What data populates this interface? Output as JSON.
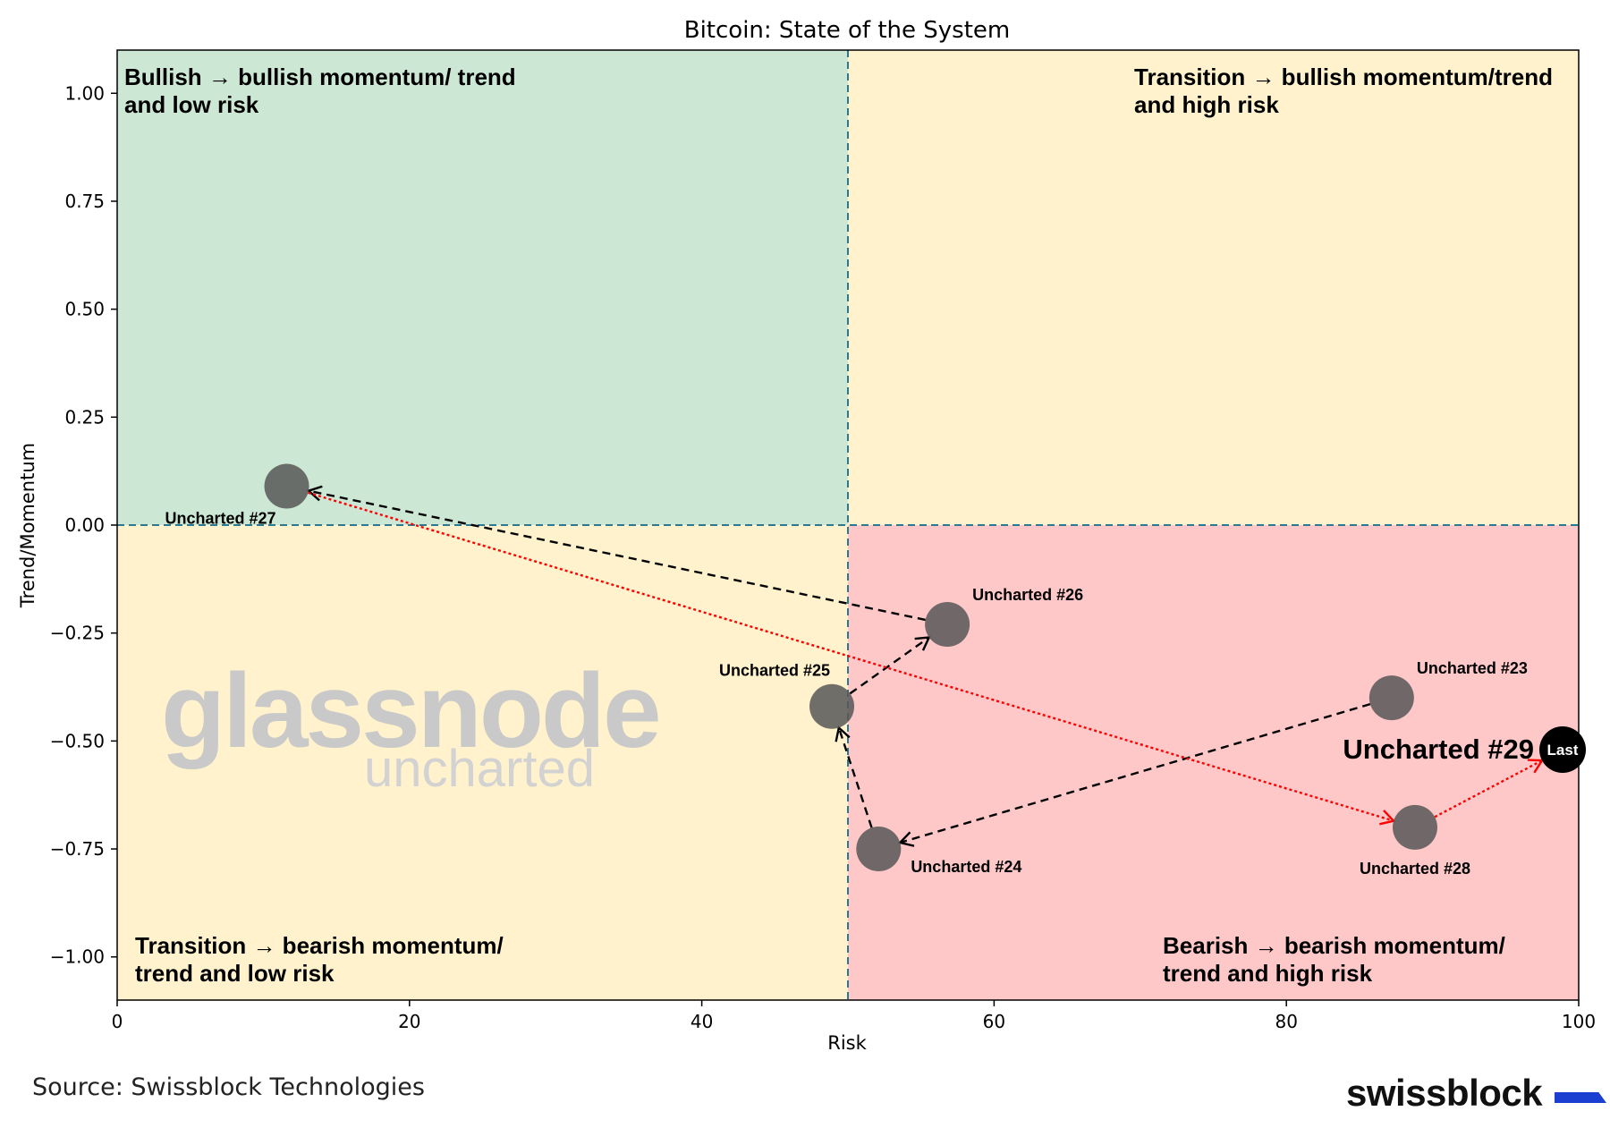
{
  "chart_data": {
    "type": "scatter",
    "title": "Bitcoin: State of the System",
    "xlabel": "Risk",
    "ylabel": "Trend/Momentum",
    "xlim": [
      0,
      100
    ],
    "ylim": [
      -1.1,
      1.1
    ],
    "x_ticks": [
      0,
      20,
      40,
      60,
      80,
      100
    ],
    "x_tick_labels": [
      "0",
      "20",
      "40",
      "60",
      "80",
      "100"
    ],
    "y_ticks": [
      1.0,
      0.75,
      0.5,
      0.25,
      0.0,
      -0.25,
      -0.5,
      -0.75,
      -1.0
    ],
    "y_tick_labels": [
      "1.00",
      "0.75",
      "0.50",
      "0.25",
      "0.00",
      "−0.25",
      "−0.50",
      "−0.75",
      "−1.00"
    ],
    "divider_x": 50,
    "divider_y": 0,
    "quadrants": [
      {
        "name": "top-left",
        "label_lines": [
          "Bullish → bullish momentum/ trend",
          "and low risk"
        ],
        "color": "#cce8d4"
      },
      {
        "name": "top-right",
        "label_lines": [
          "Transition → bullish momentum/trend",
          "and high risk"
        ],
        "color": "#fff2cc"
      },
      {
        "name": "bottom-left",
        "label_lines": [
          "Transition → bearish momentum/",
          "trend and low risk"
        ],
        "color": "#fff2cc"
      },
      {
        "name": "bottom-right",
        "label_lines": [
          "Bearish → bearish momentum/",
          "trend and high risk"
        ],
        "color": "#fec8c8"
      }
    ],
    "points": [
      {
        "label": "Uncharted #23",
        "x": 87.2,
        "y": -0.4,
        "label_pos": "above-right"
      },
      {
        "label": "Uncharted #24",
        "x": 52.1,
        "y": -0.75,
        "label_pos": "below-right"
      },
      {
        "label": "Uncharted #25",
        "x": 48.9,
        "y": -0.42,
        "label_pos": "above-left"
      },
      {
        "label": "Uncharted #26",
        "x": 56.8,
        "y": -0.23,
        "label_pos": "above-right"
      },
      {
        "label": "Uncharted #27",
        "x": 11.6,
        "y": 0.09,
        "label_pos": "below-left"
      },
      {
        "label": "Uncharted #28",
        "x": 88.8,
        "y": -0.7,
        "label_pos": "below"
      },
      {
        "label": "Uncharted #29",
        "x": 98.9,
        "y": -0.52,
        "label_pos": "left-big",
        "marker_text": "Last"
      }
    ],
    "path_black": [
      {
        "from": 87.2,
        "from_y": -0.4,
        "to": 52.1,
        "to_y": -0.75
      },
      {
        "from": 52.1,
        "from_y": -0.75,
        "to": 48.9,
        "to_y": -0.42
      },
      {
        "from": 48.9,
        "from_y": -0.42,
        "to": 56.8,
        "to_y": -0.23
      },
      {
        "from": 56.8,
        "from_y": -0.23,
        "to": 11.6,
        "to_y": 0.09
      }
    ],
    "path_red": [
      {
        "from": 11.6,
        "from_y": 0.09,
        "to": 88.8,
        "to_y": -0.7
      },
      {
        "from": 88.8,
        "from_y": -0.7,
        "to": 98.9,
        "to_y": -0.52
      }
    ],
    "colors": {
      "point": "#575757",
      "last_point": "#000000",
      "divider": "#2a7891",
      "black_arrow": "#000000",
      "red_arrow": "#ff0000"
    },
    "grid": false
  },
  "watermark": {
    "main": "glassnode",
    "sub": "uncharted"
  },
  "footer": {
    "source": "Source: Swissblock Technologies",
    "brand": "swissblock"
  }
}
